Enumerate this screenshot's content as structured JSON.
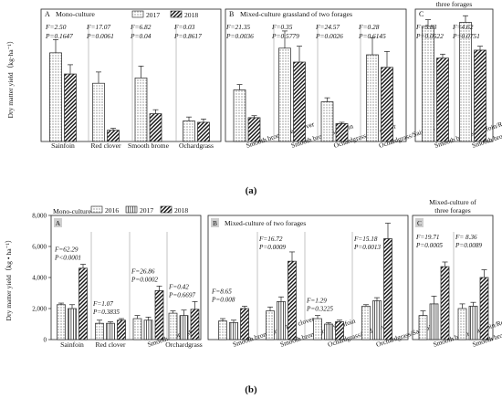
{
  "figure": {
    "caption_a": "(a)",
    "caption_b": "(b)"
  },
  "chart_data": [
    {
      "type": "bar",
      "panel_id": "a",
      "ylabel": "Dry matter yield（kg·ha⁻¹）",
      "ylim": [
        0,
        10000
      ],
      "legend": {
        "position": "top",
        "entries": [
          "2017",
          "2018"
        ]
      },
      "series_names": [
        "2017",
        "2018"
      ],
      "subpanels": [
        {
          "letter": "A",
          "title": "Mono-culture",
          "groups": [
            {
              "label": "Sainfoin",
              "values": [
                6700,
                5100
              ],
              "errors": [
                1000,
                700
              ],
              "stats": [
                "F=2.50",
                "P=0.1647"
              ]
            },
            {
              "label": "Red clover",
              "values": [
                4400,
                850
              ],
              "errors": [
                850,
                150
              ],
              "stats": [
                "F=17.07",
                "P=0.0061"
              ]
            },
            {
              "label": "Smooth brome",
              "values": [
                4800,
                2100
              ],
              "errors": [
                900,
                300
              ],
              "stats": [
                "F=6.82",
                "P=0.04"
              ]
            },
            {
              "label": "Ochardgrass",
              "values": [
                1550,
                1450
              ],
              "errors": [
                300,
                250
              ],
              "stats": [
                "F=0.03",
                "P=0.8617"
              ]
            }
          ]
        },
        {
          "letter": "B",
          "title": "Mixed-culture grassland of two forages",
          "groups": [
            {
              "label": "Smooth brome/Red clover",
              "values": [
                3900,
                1800
              ],
              "errors": [
                400,
                150
              ],
              "stats": [
                "F=21.35",
                "P=0.0036"
              ]
            },
            {
              "label": "Smooth brome/Sainfoin",
              "values": [
                7050,
                6000
              ],
              "errors": [
                1300,
                1200
              ],
              "stats": [
                "F=0.35",
                "P=0.5779"
              ]
            },
            {
              "label": "Ochardgrass/Red clover",
              "values": [
                3000,
                1350
              ],
              "errors": [
                300,
                100
              ],
              "stats": [
                "F=24.57",
                "P=0.0026"
              ]
            },
            {
              "label": "Ochardgrass/Sainfoin",
              "values": [
                6550,
                5600
              ],
              "errors": [
                1300,
                1200
              ],
              "stats": [
                "F=0.28",
                "P=0.6145"
              ]
            }
          ]
        },
        {
          "letter": "C",
          "title": "Mixed-culture grassland of three forages",
          "groups": [
            {
              "label": "Smooth brome/Sainfoin/Red clover",
              "values": [
                8700,
                6300
              ],
              "errors": [
                500,
                300
              ],
              "stats": [
                "F=5.83",
                "P=0.0522"
              ]
            },
            {
              "label": "Smooth brome/Sainfoin/Ochardgrass",
              "values": [
                9000,
                6900
              ],
              "errors": [
                500,
                300
              ],
              "stats": [
                "F=4.62",
                "P=0.0751"
              ]
            }
          ]
        }
      ]
    },
    {
      "type": "bar",
      "panel_id": "b",
      "ylabel": "Dry matter yield（kg • ha⁻¹）",
      "ylim": [
        0,
        8000
      ],
      "yticks": [
        "0",
        "2,000",
        "4,000",
        "6,000",
        "8,000"
      ],
      "legend": {
        "position": "top",
        "entries": [
          "2016",
          "2017",
          "2018"
        ]
      },
      "series_names": [
        "2016",
        "2017",
        "2018"
      ],
      "subpanels": [
        {
          "letter": "A",
          "title": "Mono-culture",
          "groups": [
            {
              "label": "Sainfoin",
              "values": [
                2250,
                2000,
                4600
              ],
              "errors": [
                100,
                250,
                250
              ],
              "stats": [
                "F=62.29",
                "P<0.0001"
              ]
            },
            {
              "label": "Red clover",
              "values": [
                1050,
                1050,
                1250
              ],
              "errors": [
                200,
                100,
                100
              ],
              "stats": [
                "F=1.07",
                "P=0.3835"
              ]
            },
            {
              "label": "Smooth bromegrass",
              "values": [
                1350,
                1250,
                3150
              ],
              "errors": [
                200,
                200,
                300
              ],
              "stats": [
                "F=26.86",
                "P=0.0002"
              ]
            },
            {
              "label": "Orchardgrass",
              "values": [
                1700,
                1550,
                1950
              ],
              "errors": [
                150,
                350,
                500
              ],
              "stats": [
                "F=0.42",
                "P=0.6697"
              ]
            }
          ]
        },
        {
          "letter": "B",
          "title": "Mixed-culture of two forages",
          "groups": [
            {
              "label": "Smooth bromegrass/Red clover",
              "values": [
                1200,
                1100,
                2000
              ],
              "errors": [
                150,
                150,
                150
              ],
              "stats": [
                "F=8.65",
                "P=0.008"
              ]
            },
            {
              "label": "Smooth bromegrass/Sainfoin",
              "values": [
                1850,
                2450,
                5050
              ],
              "errors": [
                250,
                300,
                600
              ],
              "stats": [
                "F=16.72",
                "P=0.0009"
              ]
            },
            {
              "label": "Ochardgrass/Red clover",
              "values": [
                1350,
                1000,
                1150
              ],
              "errors": [
                200,
                100,
                100
              ],
              "stats": [
                "F=1.29",
                "P=0.3225"
              ]
            },
            {
              "label": "Orchardgrass/Sainfoin",
              "values": [
                2150,
                2500,
                6500
              ],
              "errors": [
                100,
                200,
                1000
              ],
              "stats": [
                "F=15.18",
                "P=0.0013"
              ]
            }
          ]
        },
        {
          "letter": "C",
          "title": "Mixed-culture of three forages",
          "groups": [
            {
              "label": "Smooth brome/Sainfoin/Red clover",
              "values": [
                1550,
                2300,
                4700
              ],
              "errors": [
                300,
                500,
                300
              ],
              "stats": [
                "F=19.71",
                "P=0.0005"
              ]
            },
            {
              "label": "Smooth brome/Sainfoin/Orchardgrass",
              "values": [
                2000,
                2150,
                4000
              ],
              "errors": [
                300,
                250,
                500
              ],
              "stats": [
                "F= 8.36",
                "P=0.0089"
              ]
            }
          ]
        }
      ]
    }
  ]
}
